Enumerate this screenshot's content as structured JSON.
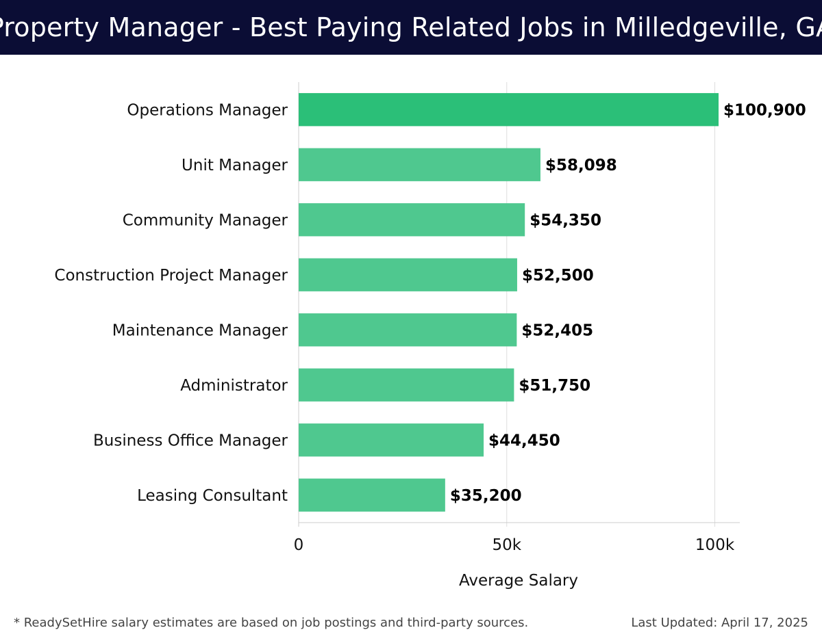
{
  "header": {
    "title": "Property Manager - Best Paying Related Jobs in Milledgeville, GA"
  },
  "chart_data": {
    "type": "bar",
    "orientation": "horizontal",
    "categories": [
      "Operations Manager",
      "Unit Manager",
      "Community Manager",
      "Construction Project Manager",
      "Maintenance Manager",
      "Administrator",
      "Business Office Manager",
      "Leasing Consultant"
    ],
    "values": [
      100900,
      58098,
      54350,
      52500,
      52405,
      51750,
      44450,
      35200
    ],
    "value_labels": [
      "$100,900",
      "$58,098",
      "$54,350",
      "$52,500",
      "$52,405",
      "$51,750",
      "$44,450",
      "$35,200"
    ],
    "xlabel": "Average Salary",
    "xlim": [
      0,
      106000
    ],
    "xticks": [
      0,
      50000,
      100000
    ],
    "xtick_labels": [
      "0",
      "50k",
      "100k"
    ],
    "grid": true,
    "colors": {
      "highlight": "#2bbf78",
      "bar": "#4fc88f"
    }
  },
  "footer": {
    "note": "* ReadySetHire salary estimates are based on job postings and third-party sources.",
    "updated": "Last Updated: April 17, 2025"
  }
}
